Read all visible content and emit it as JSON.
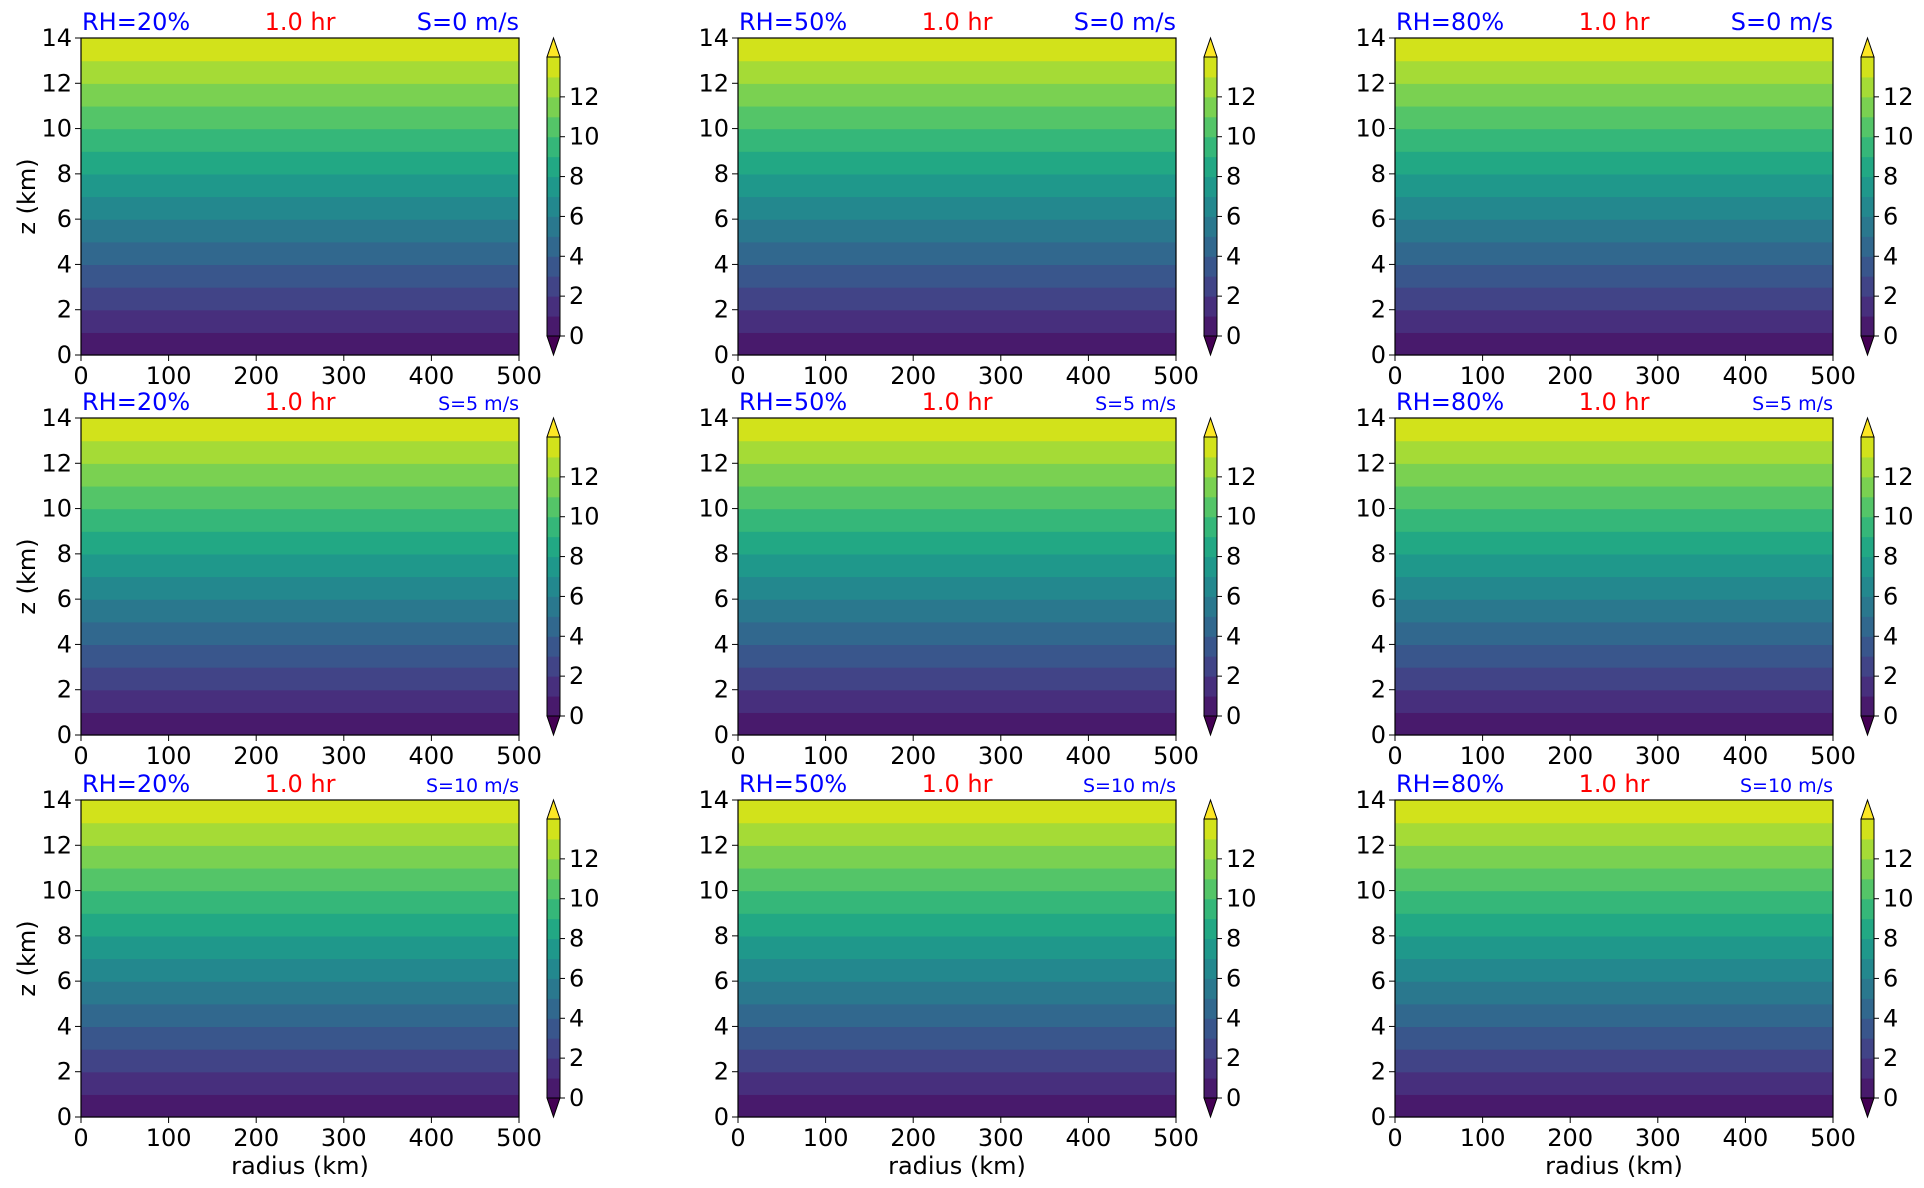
{
  "figure": {
    "xlabel": "radius (km)",
    "ylabel": "z (km)",
    "time_label": "1.0 hr",
    "label_colors": {
      "rh": "#0000ff",
      "time": "#ff0000",
      "shear": "#0000ff"
    }
  },
  "chart_data": {
    "type": "heatmap",
    "layout": "3x3 grid",
    "x_ticks": [
      0,
      100,
      200,
      300,
      400,
      500
    ],
    "y_ticks": [
      0,
      2,
      4,
      6,
      8,
      10,
      12,
      14
    ],
    "xlim": [
      0,
      500
    ],
    "ylim": [
      0,
      14
    ],
    "colorbar": {
      "ticks": [
        0,
        2,
        4,
        6,
        8,
        10,
        12
      ],
      "levels": [
        0,
        1,
        2,
        3,
        4,
        5,
        6,
        7,
        8,
        9,
        10,
        11,
        12,
        13,
        14
      ],
      "extend": "both",
      "colormap": "viridis",
      "colors": [
        "#440154",
        "#481a6c",
        "#472f7d",
        "#414487",
        "#39568c",
        "#31688e",
        "#2a788e",
        "#23888e",
        "#1f988b",
        "#22a884",
        "#35b779",
        "#54c568",
        "#7ad151",
        "#a5db36",
        "#d2e21b",
        "#fde725"
      ]
    },
    "field": "horizontally uniform, equal to height z (km), contoured at 1 km intervals",
    "panels": [
      {
        "rh": "RH=20%",
        "time": "1.0 hr",
        "shear": "S=0 m/s"
      },
      {
        "rh": "RH=50%",
        "time": "1.0 hr",
        "shear": "S=0 m/s"
      },
      {
        "rh": "RH=80%",
        "time": "1.0 hr",
        "shear": "S=0 m/s"
      },
      {
        "rh": "RH=20%",
        "time": "1.0 hr",
        "shear": "S=5 m/s"
      },
      {
        "rh": "RH=50%",
        "time": "1.0 hr",
        "shear": "S=5 m/s"
      },
      {
        "rh": "RH=80%",
        "time": "1.0 hr",
        "shear": "S=5 m/s"
      },
      {
        "rh": "RH=20%",
        "time": "1.0 hr",
        "shear": "S=10 m/s"
      },
      {
        "rh": "RH=50%",
        "time": "1.0 hr",
        "shear": "S=10 m/s"
      },
      {
        "rh": "RH=80%",
        "time": "1.0 hr",
        "shear": "S=10 m/s"
      }
    ]
  }
}
